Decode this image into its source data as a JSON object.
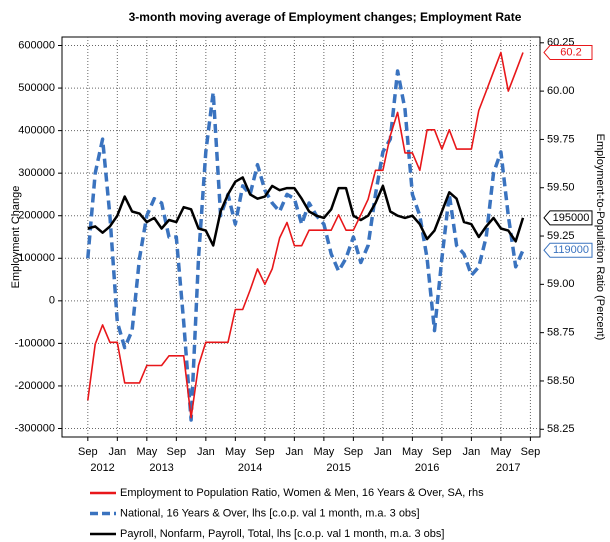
{
  "chart_data": {
    "type": "line",
    "title": "3-month moving average of Employment changes; Employment Rate",
    "ylabel": "Employment Change",
    "y2label": "Employment-to-Population Ratio (Percent)",
    "x": [
      "2012-09",
      "2012-10",
      "2012-11",
      "2012-12",
      "2013-01",
      "2013-02",
      "2013-03",
      "2013-04",
      "2013-05",
      "2013-06",
      "2013-07",
      "2013-08",
      "2013-09",
      "2013-10",
      "2013-11",
      "2013-12",
      "2014-01",
      "2014-02",
      "2014-03",
      "2014-04",
      "2014-05",
      "2014-06",
      "2014-07",
      "2014-08",
      "2014-09",
      "2014-10",
      "2014-11",
      "2014-12",
      "2015-01",
      "2015-02",
      "2015-03",
      "2015-04",
      "2015-05",
      "2015-06",
      "2015-07",
      "2015-08",
      "2015-09",
      "2015-10",
      "2015-11",
      "2015-12",
      "2016-01",
      "2016-02",
      "2016-03",
      "2016-04",
      "2016-05",
      "2016-06",
      "2016-07",
      "2016-08",
      "2016-09",
      "2016-10",
      "2016-11",
      "2016-12",
      "2017-01",
      "2017-02",
      "2017-03",
      "2017-04",
      "2017-05",
      "2017-06",
      "2017-07",
      "2017-08"
    ],
    "series": [
      {
        "name": "Employment to Population Ratio, Women & Men, 16 Years & Over, SA, rhs",
        "color": "#e8171a",
        "axis": "y2",
        "dashed": false,
        "values": [
          58.4,
          58.69,
          58.79,
          58.7,
          58.7,
          58.49,
          58.49,
          58.49,
          58.58,
          58.58,
          58.58,
          58.63,
          58.63,
          58.63,
          58.31,
          58.58,
          58.7,
          58.7,
          58.7,
          58.7,
          58.87,
          58.87,
          58.97,
          59.08,
          59.0,
          59.08,
          59.24,
          59.32,
          59.2,
          59.2,
          59.28,
          59.28,
          59.28,
          59.28,
          59.36,
          59.28,
          59.28,
          59.36,
          59.44,
          59.59,
          59.59,
          59.77,
          59.89,
          59.68,
          59.68,
          59.59,
          59.8,
          59.8,
          59.7,
          59.8,
          59.7,
          59.7,
          59.7,
          59.9,
          60.0,
          60.1,
          60.2,
          60.0,
          60.1,
          60.2
        ]
      },
      {
        "name": "National, 16 Years & Over, lhs [c.o.p. val 1 month, m.a. 3 obs]",
        "color": "#3a73bf",
        "axis": "y",
        "dashed": true,
        "values": [
          100000,
          300000,
          380000,
          200000,
          -50000,
          -110000,
          -70000,
          100000,
          200000,
          240000,
          230000,
          150000,
          150000,
          -50000,
          -280000,
          100000,
          350000,
          490000,
          200000,
          250000,
          180000,
          270000,
          250000,
          320000,
          260000,
          230000,
          210000,
          250000,
          240000,
          180000,
          230000,
          200000,
          180000,
          110000,
          70000,
          100000,
          150000,
          90000,
          130000,
          250000,
          350000,
          380000,
          540000,
          450000,
          250000,
          200000,
          100000,
          -70000,
          100000,
          250000,
          130000,
          110000,
          60000,
          80000,
          150000,
          300000,
          350000,
          200000,
          80000,
          119000
        ]
      },
      {
        "name": "Payroll, Nonfarm, Payroll, Total, lhs [c.o.p. val 1 month, m.a. 3 obs]",
        "color": "#000000",
        "axis": "y",
        "dashed": false,
        "values": [
          170000,
          175000,
          160000,
          175000,
          200000,
          245000,
          210000,
          205000,
          185000,
          195000,
          170000,
          190000,
          185000,
          220000,
          215000,
          170000,
          165000,
          130000,
          210000,
          250000,
          280000,
          290000,
          250000,
          240000,
          245000,
          270000,
          260000,
          265000,
          265000,
          240000,
          210000,
          200000,
          195000,
          215000,
          265000,
          265000,
          200000,
          190000,
          200000,
          230000,
          270000,
          210000,
          200000,
          195000,
          200000,
          180000,
          145000,
          165000,
          210000,
          255000,
          240000,
          185000,
          180000,
          150000,
          175000,
          195000,
          170000,
          165000,
          140000,
          195000
        ]
      }
    ],
    "xlim": [
      "2012-05-16",
      "2017-10-10"
    ],
    "xticks": [
      {
        "value": "2012-09",
        "label": "Sep"
      },
      {
        "value": "2013-01",
        "label": "Jan"
      },
      {
        "value": "2013-05",
        "label": "May"
      },
      {
        "value": "2013-09",
        "label": "Sep"
      },
      {
        "value": "2014-01",
        "label": "Jan"
      },
      {
        "value": "2014-05",
        "label": "May"
      },
      {
        "value": "2014-09",
        "label": "Sep"
      },
      {
        "value": "2015-01",
        "label": "Jan"
      },
      {
        "value": "2015-05",
        "label": "May"
      },
      {
        "value": "2015-09",
        "label": "Sep"
      },
      {
        "value": "2016-01",
        "label": "Jan"
      },
      {
        "value": "2016-05",
        "label": "May"
      },
      {
        "value": "2016-09",
        "label": "Sep"
      },
      {
        "value": "2017-01",
        "label": "Jan"
      },
      {
        "value": "2017-05",
        "label": "May"
      },
      {
        "value": "2017-09",
        "label": "Sep"
      }
    ],
    "year_labels": [
      {
        "value": "2012-11",
        "label": "2012"
      },
      {
        "value": "2013-07",
        "label": "2013"
      },
      {
        "value": "2014-07",
        "label": "2014"
      },
      {
        "value": "2015-07",
        "label": "2015"
      },
      {
        "value": "2016-07",
        "label": "2016"
      },
      {
        "value": "2017-06",
        "label": "2017"
      }
    ],
    "ylim": [
      -320000,
      620000
    ],
    "yticks": [
      -300000,
      -200000,
      -100000,
      0,
      100000,
      200000,
      300000,
      400000,
      500000,
      600000
    ],
    "y2lim": [
      58.21,
      60.28
    ],
    "y2ticks": [
      58.25,
      {
        "value": 58.5,
        "label": "58.50"
      },
      58.75,
      {
        "value": 59,
        "label": "59.00"
      },
      59.25,
      {
        "value": 59.5,
        "label": "59.50"
      },
      59.75,
      {
        "value": 60,
        "label": "60.00"
      },
      60.25
    ],
    "grid": true
  }
}
